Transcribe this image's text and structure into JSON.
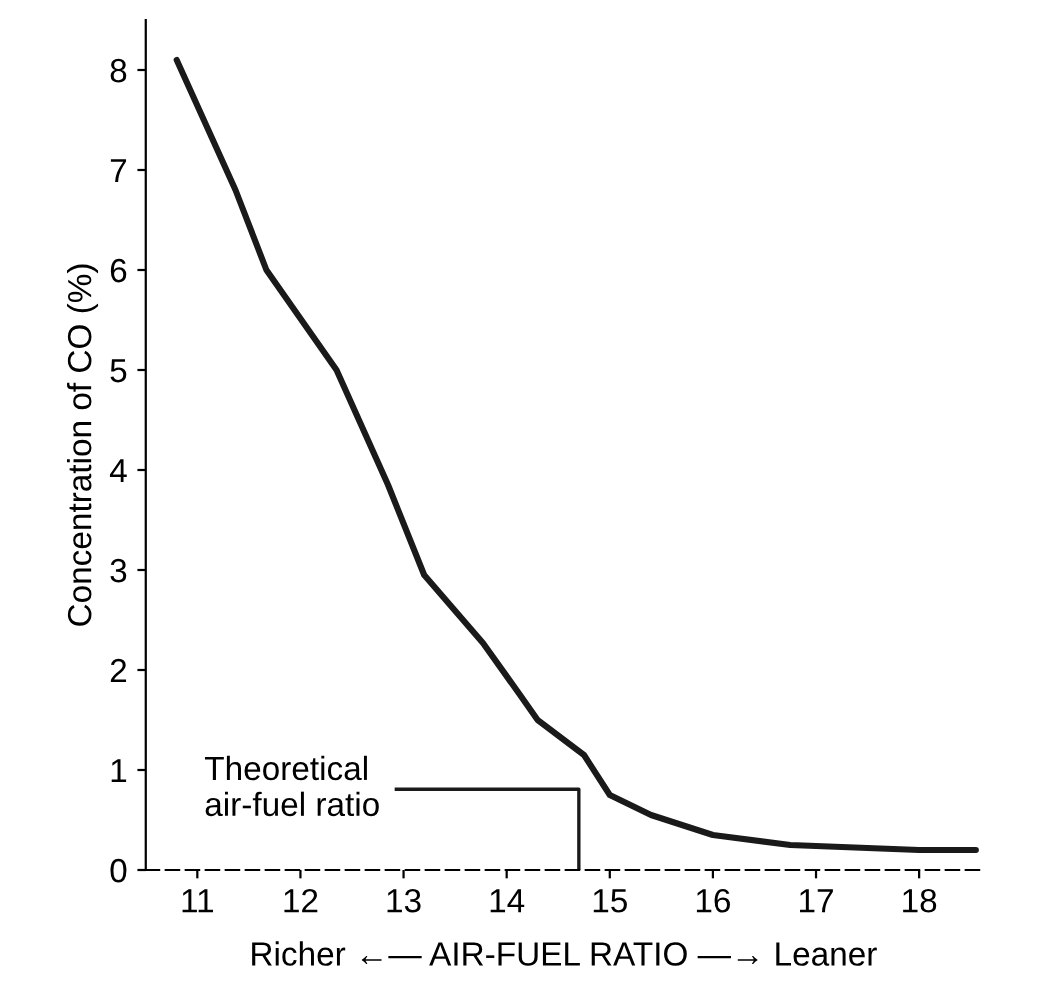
{
  "chart_data": {
    "type": "line",
    "ylabel": "Concentration of CO (%)",
    "xlabel": "Richer ←— AIR-FUEL RATIO —→ Leaner",
    "x": [
      10.8,
      11.37,
      11.67,
      12.35,
      12.85,
      13.2,
      13.77,
      14.13,
      14.3,
      14.75,
      15.0,
      15.4,
      16.0,
      16.75,
      17.5,
      18.0,
      18.55
    ],
    "series": [
      {
        "color": "#1a1a1a",
        "values": [
          8.1,
          6.8,
          6.0,
          5.0,
          3.85,
          2.95,
          2.27,
          1.75,
          1.5,
          1.15,
          0.75,
          0.55,
          0.35,
          0.25,
          0.22,
          0.2,
          0.2
        ]
      }
    ],
    "xlim": [
      10.5,
      18.6
    ],
    "ylim": [
      0,
      8.5
    ],
    "xticks": [
      11,
      12,
      13,
      14,
      15,
      16,
      17,
      18
    ],
    "yticks": [
      0,
      1,
      2,
      3,
      4,
      5,
      6,
      7,
      8
    ],
    "ref_lines": [
      {
        "axis": "x",
        "value": 14.7,
        "label": "Theoretical\nair-fuel ratio",
        "color": "#1a1a1a"
      }
    ],
    "grid": false,
    "legend": false,
    "marker": "none",
    "line_style": "solid"
  }
}
